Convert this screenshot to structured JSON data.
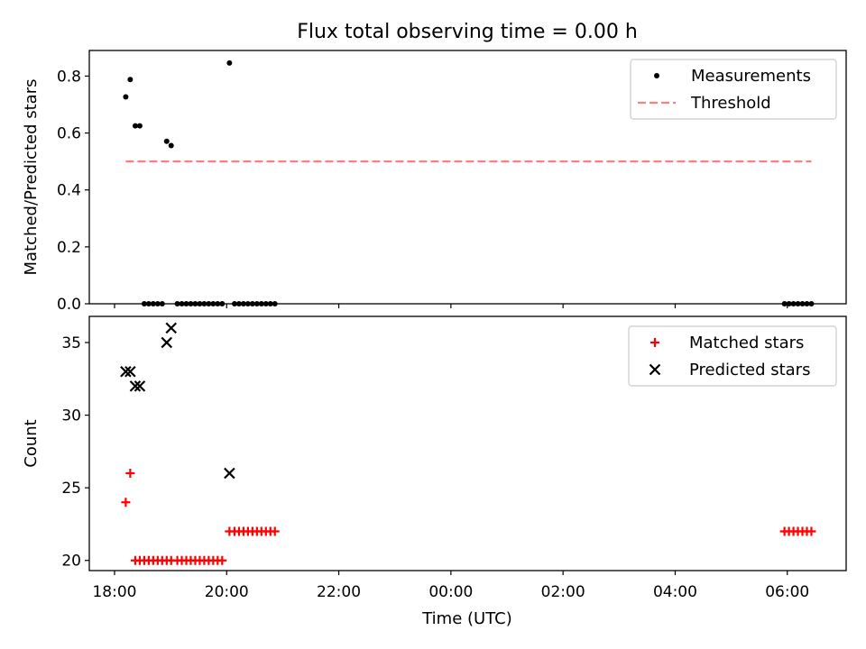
{
  "figure": {
    "title": "Flux total observing time = 0.00 h",
    "xlabel": "Time (UTC)",
    "x_ticks": [
      "18:00",
      "20:00",
      "22:00",
      "00:00",
      "02:00",
      "04:00",
      "06:00"
    ]
  },
  "chart_data": [
    {
      "type": "scatter",
      "ylabel": "Matched/Predicted stars",
      "x_unit": "hours since 18:00 UTC",
      "xlim": [
        -0.45,
        13.05
      ],
      "ylim": [
        0,
        0.89
      ],
      "y_ticks": [
        "0.0",
        "0.2",
        "0.4",
        "0.6",
        "0.8"
      ],
      "legend_position": "top-right",
      "series": [
        {
          "name": "Measurements",
          "kind": "points",
          "color": "#000000",
          "points": [
            [
              0.2,
              0.727
            ],
            [
              0.28,
              0.788
            ],
            [
              0.37,
              0.625
            ],
            [
              0.45,
              0.625
            ],
            [
              0.53,
              0.0
            ],
            [
              0.61,
              0.0
            ],
            [
              0.69,
              0.0
            ],
            [
              0.77,
              0.0
            ],
            [
              0.85,
              0.0
            ],
            [
              0.93,
              0.571
            ],
            [
              1.01,
              0.556
            ],
            [
              1.12,
              0.0
            ],
            [
              1.2,
              0.0
            ],
            [
              1.28,
              0.0
            ],
            [
              1.36,
              0.0
            ],
            [
              1.44,
              0.0
            ],
            [
              1.52,
              0.0
            ],
            [
              1.6,
              0.0
            ],
            [
              1.68,
              0.0
            ],
            [
              1.76,
              0.0
            ],
            [
              1.84,
              0.0
            ],
            [
              1.92,
              0.0
            ],
            [
              2.05,
              0.846
            ],
            [
              2.14,
              0.0
            ],
            [
              2.22,
              0.0
            ],
            [
              2.3,
              0.0
            ],
            [
              2.38,
              0.0
            ],
            [
              2.46,
              0.0
            ],
            [
              2.54,
              0.0
            ],
            [
              2.62,
              0.0
            ],
            [
              2.7,
              0.0
            ],
            [
              2.78,
              0.0
            ],
            [
              2.86,
              0.0
            ],
            [
              11.95,
              0.0
            ],
            [
              12.03,
              0.0
            ],
            [
              12.11,
              0.0
            ],
            [
              12.19,
              0.0
            ],
            [
              12.27,
              0.0
            ],
            [
              12.35,
              0.0
            ],
            [
              12.43,
              0.0
            ]
          ]
        },
        {
          "name": "Threshold",
          "kind": "dashed-line",
          "color": "#ff7f7f",
          "points": [
            [
              0.2,
              0.5
            ],
            [
              12.43,
              0.5
            ]
          ]
        }
      ]
    },
    {
      "type": "scatter",
      "ylabel": "Count",
      "xlim": [
        -0.45,
        13.05
      ],
      "ylim": [
        19.3,
        36.8
      ],
      "y_ticks": [
        "20",
        "25",
        "30",
        "35"
      ],
      "legend_position": "top-right",
      "series": [
        {
          "name": "Matched stars",
          "kind": "plus",
          "color": "#ff0000",
          "points": [
            [
              0.2,
              24
            ],
            [
              0.28,
              26
            ],
            [
              0.37,
              20
            ],
            [
              0.45,
              20
            ],
            [
              0.53,
              20
            ],
            [
              0.61,
              20
            ],
            [
              0.69,
              20
            ],
            [
              0.77,
              20
            ],
            [
              0.85,
              20
            ],
            [
              0.93,
              20
            ],
            [
              1.01,
              20
            ],
            [
              1.12,
              20
            ],
            [
              1.2,
              20
            ],
            [
              1.28,
              20
            ],
            [
              1.36,
              20
            ],
            [
              1.44,
              20
            ],
            [
              1.52,
              20
            ],
            [
              1.6,
              20
            ],
            [
              1.68,
              20
            ],
            [
              1.76,
              20
            ],
            [
              1.84,
              20
            ],
            [
              1.92,
              20
            ],
            [
              2.05,
              22
            ],
            [
              2.14,
              22
            ],
            [
              2.22,
              22
            ],
            [
              2.3,
              22
            ],
            [
              2.38,
              22
            ],
            [
              2.46,
              22
            ],
            [
              2.54,
              22
            ],
            [
              2.62,
              22
            ],
            [
              2.7,
              22
            ],
            [
              2.78,
              22
            ],
            [
              2.86,
              22
            ],
            [
              11.95,
              22
            ],
            [
              12.03,
              22
            ],
            [
              12.11,
              22
            ],
            [
              12.19,
              22
            ],
            [
              12.27,
              22
            ],
            [
              12.35,
              22
            ],
            [
              12.43,
              22
            ]
          ]
        },
        {
          "name": "Predicted stars",
          "kind": "x",
          "color": "#000000",
          "points": [
            [
              0.2,
              33
            ],
            [
              0.28,
              33
            ],
            [
              0.37,
              32
            ],
            [
              0.45,
              32
            ],
            [
              0.93,
              35
            ],
            [
              1.01,
              36
            ],
            [
              2.05,
              26
            ]
          ]
        }
      ]
    }
  ]
}
